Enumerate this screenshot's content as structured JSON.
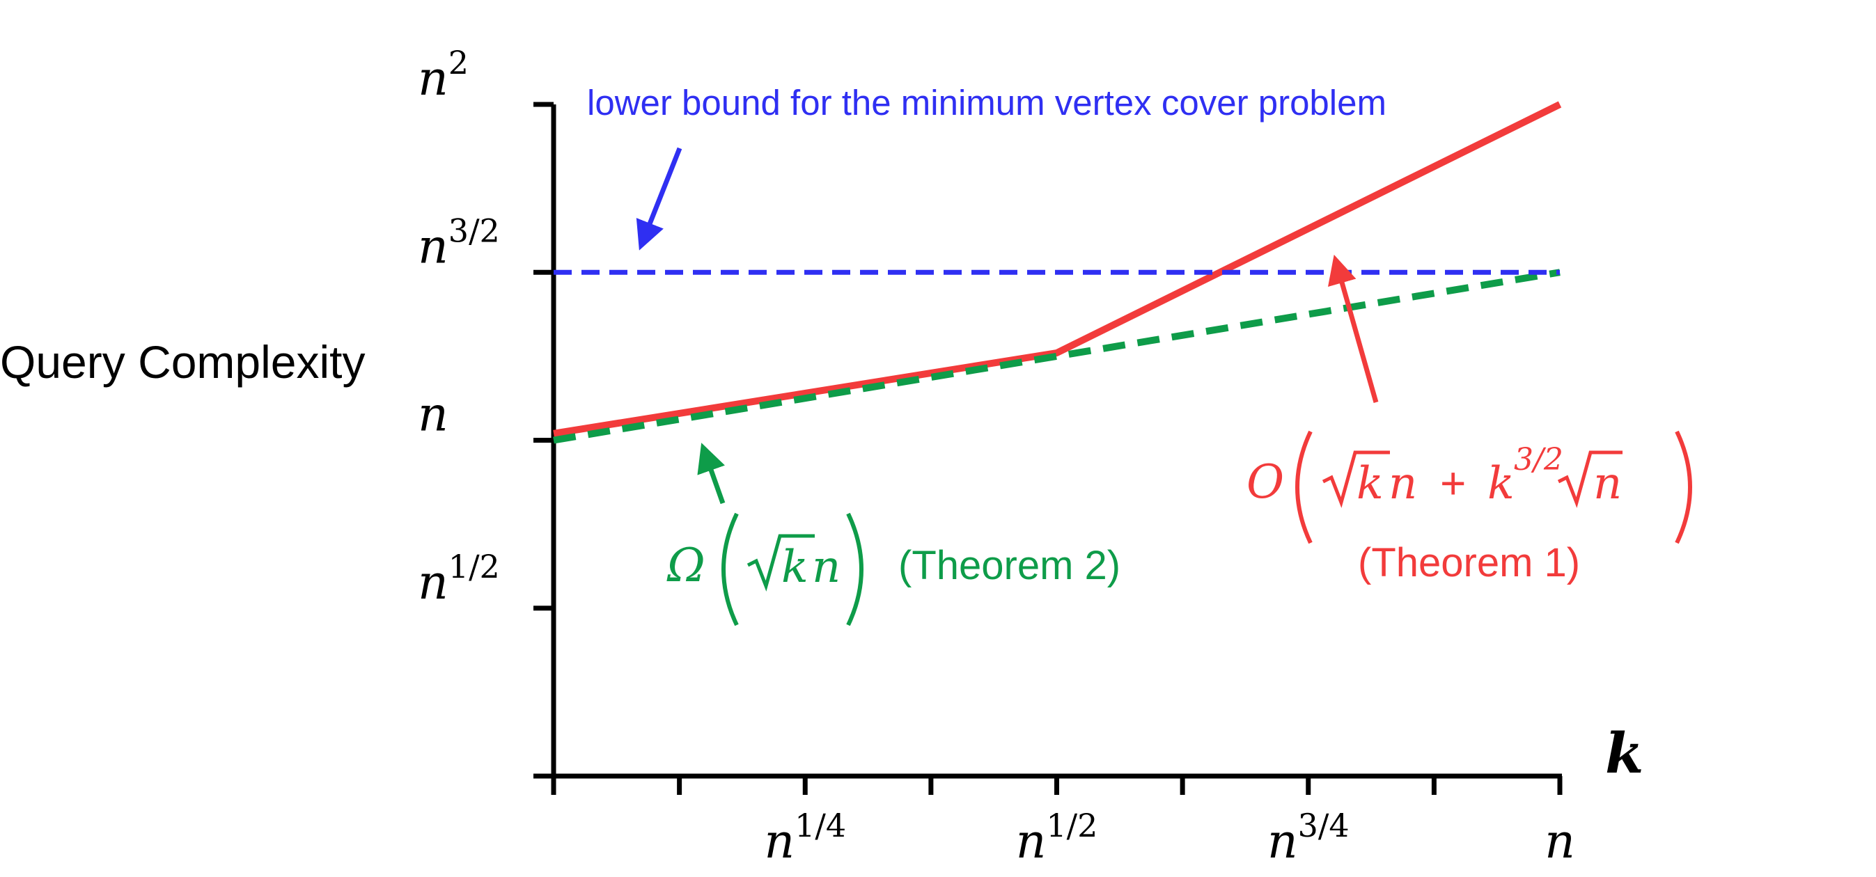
{
  "chart_data": {
    "type": "line",
    "ylabel": "Query Complexity",
    "xlabel": "k",
    "x_scale": "log_n",
    "y_scale": "log_n",
    "x_ticks": [
      {
        "exp": 0,
        "base": "",
        "sup": ""
      },
      {
        "exp": 0.125,
        "base": "",
        "sup": ""
      },
      {
        "exp": 0.25,
        "base": "n",
        "sup": "1/4"
      },
      {
        "exp": 0.375,
        "base": "",
        "sup": ""
      },
      {
        "exp": 0.5,
        "base": "n",
        "sup": "1/2"
      },
      {
        "exp": 0.625,
        "base": "",
        "sup": ""
      },
      {
        "exp": 0.75,
        "base": "n",
        "sup": "3/4"
      },
      {
        "exp": 0.875,
        "base": "",
        "sup": ""
      },
      {
        "exp": 1,
        "base": "n",
        "sup": ""
      }
    ],
    "y_ticks": [
      {
        "exp": 0.5,
        "base": "n",
        "sup": "1/2"
      },
      {
        "exp": 1,
        "base": "n",
        "sup": ""
      },
      {
        "exp": 1.5,
        "base": "n",
        "sup": "3/2"
      },
      {
        "exp": 2,
        "base": "n",
        "sup": "2"
      }
    ],
    "xlim": [
      0,
      1
    ],
    "ylim": [
      0,
      2
    ],
    "series": [
      {
        "key": "upper",
        "color": "#f23b3b",
        "dash": false,
        "x": [
          0,
          0.5,
          1
        ],
        "y": [
          1.02,
          1.26,
          2.0
        ]
      },
      {
        "key": "lower",
        "color": "#0e9c49",
        "dash": true,
        "x": [
          0,
          1
        ],
        "y": [
          1.0,
          1.5
        ]
      },
      {
        "key": "vc",
        "color": "#2f2ff2",
        "dash": true,
        "x": [
          0,
          1
        ],
        "y": [
          1.5,
          1.5
        ]
      }
    ],
    "annotations": {
      "vc_text": "lower bound for the minimum vertex cover problem",
      "thm2_omega": "Ω",
      "thm2_k": "k",
      "thm2_n": "n",
      "thm2_label": "(Theorem 2)",
      "thm1_O": "O",
      "thm1_k": "k",
      "thm1_n": "n",
      "thm1_plus": "+",
      "thm1_k2": "k",
      "thm1_sup": "3/2",
      "thm1_n2": "n",
      "thm1_label": "(Theorem 1)"
    },
    "colors": {
      "upper": "#f23b3b",
      "lower": "#0e9c49",
      "vc": "#2f2ff2",
      "axis": "#000000"
    }
  }
}
